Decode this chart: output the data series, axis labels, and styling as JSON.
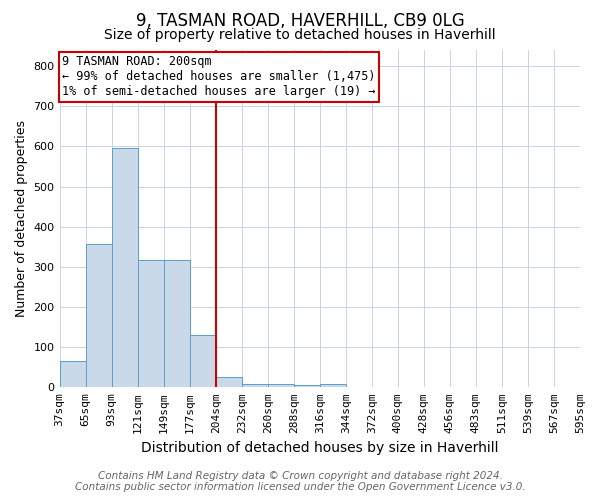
{
  "title1": "9, TASMAN ROAD, HAVERHILL, CB9 0LG",
  "title2": "Size of property relative to detached houses in Haverhill",
  "xlabel": "Distribution of detached houses by size in Haverhill",
  "ylabel": "Number of detached properties",
  "bar_values": [
    65,
    357,
    595,
    318,
    318,
    130,
    25,
    8,
    8,
    5,
    8,
    0,
    0,
    0,
    0,
    0,
    0,
    0,
    0,
    0
  ],
  "bin_labels": [
    "37sqm",
    "65sqm",
    "93sqm",
    "121sqm",
    "149sqm",
    "177sqm",
    "204sqm",
    "232sqm",
    "260sqm",
    "288sqm",
    "316sqm",
    "344sqm",
    "372sqm",
    "400sqm",
    "428sqm",
    "456sqm",
    "483sqm",
    "511sqm",
    "539sqm",
    "567sqm",
    "595sqm"
  ],
  "bar_color": "#c9d9e9",
  "bar_edge_color": "#5a9ec8",
  "red_line_x": 6,
  "red_line_color": "#cc0000",
  "annotation_text": "9 TASMAN ROAD: 200sqm\n← 99% of detached houses are smaller (1,475)\n1% of semi-detached houses are larger (19) →",
  "annotation_box_color": "#ffffff",
  "annotation_border_color": "#cc0000",
  "ylim": [
    0,
    840
  ],
  "yticks": [
    0,
    100,
    200,
    300,
    400,
    500,
    600,
    700,
    800
  ],
  "footer1": "Contains HM Land Registry data © Crown copyright and database right 2024.",
  "footer2": "Contains public sector information licensed under the Open Government Licence v3.0.",
  "title1_fontsize": 12,
  "title2_fontsize": 10,
  "xlabel_fontsize": 10,
  "ylabel_fontsize": 9,
  "tick_fontsize": 8,
  "annotation_fontsize": 8.5,
  "footer_fontsize": 7.5,
  "background_color": "#ffffff",
  "grid_color": "#c8d4e4"
}
